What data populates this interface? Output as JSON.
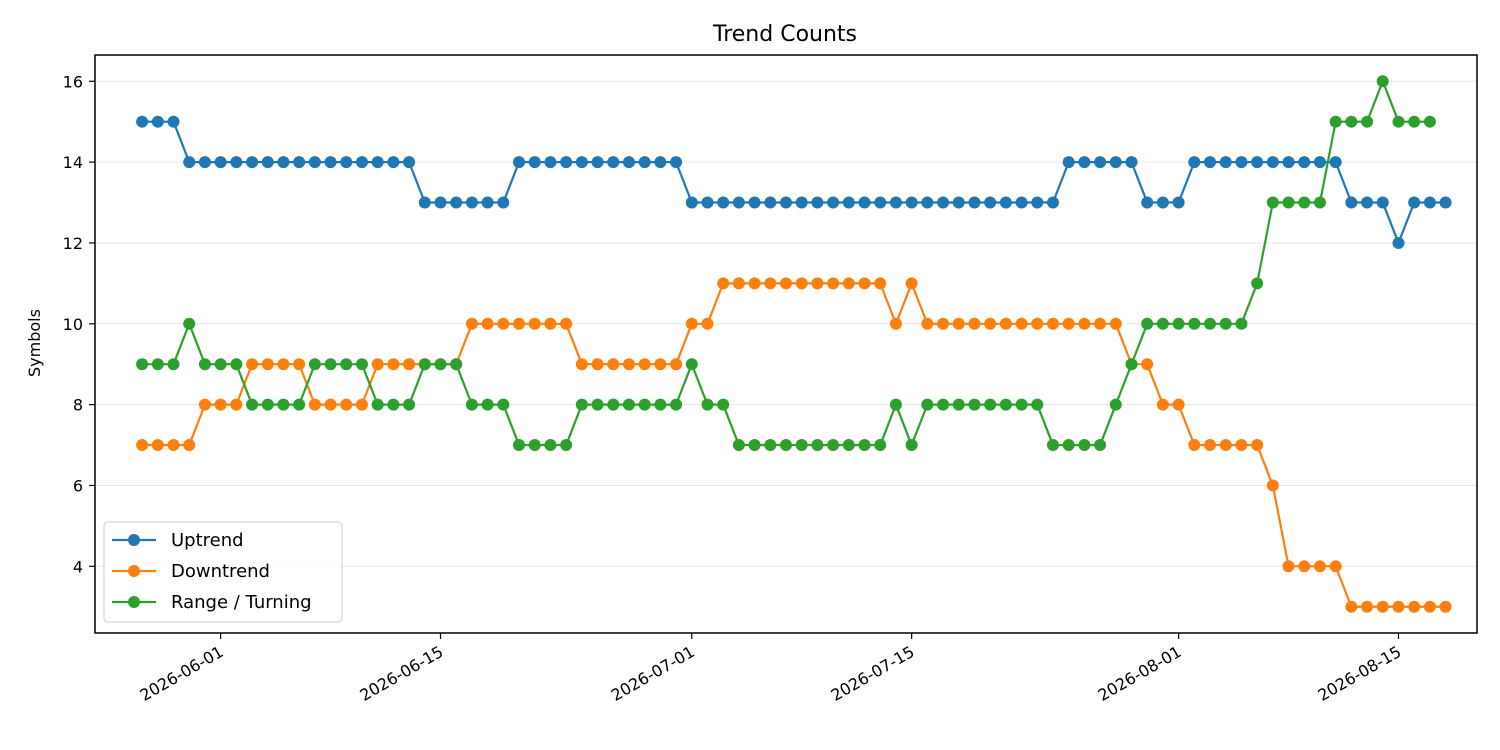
{
  "chart_data": {
    "type": "line",
    "title": "Trend Counts",
    "xlabel": "",
    "ylabel": "Symbols",
    "x_start": "2026-05-27",
    "x_end": "2026-08-17",
    "xlim": [
      "2026-05-24",
      "2026-08-20"
    ],
    "ylim": [
      2.35,
      16.65
    ],
    "y_ticks": [
      4,
      6,
      8,
      10,
      12,
      14,
      16
    ],
    "x_ticks": [
      "2026-06-01",
      "2026-06-15",
      "2026-07-01",
      "2026-07-15",
      "2026-08-01",
      "2026-08-15"
    ],
    "grid": "y",
    "legend_position": "lower-left",
    "series": [
      {
        "name": "Uptrend",
        "color": "#1f77b4",
        "values": [
          15,
          15,
          15,
          14,
          14,
          14,
          14,
          14,
          14,
          14,
          14,
          14,
          14,
          14,
          14,
          14,
          14,
          14,
          13,
          13,
          13,
          13,
          13,
          13,
          14,
          14,
          14,
          14,
          14,
          14,
          14,
          14,
          14,
          14,
          14,
          13,
          13,
          13,
          13,
          13,
          13,
          13,
          13,
          13,
          13,
          13,
          13,
          13,
          13,
          13,
          13,
          13,
          13,
          13,
          13,
          13,
          13,
          13,
          13,
          14,
          14,
          14,
          14,
          14,
          13,
          13,
          13,
          14,
          14,
          14,
          14,
          14,
          14,
          14,
          14,
          14,
          14,
          13,
          13,
          13,
          12,
          13,
          13,
          13
        ]
      },
      {
        "name": "Downtrend",
        "color": "#ff7f0e",
        "values": [
          7,
          7,
          7,
          7,
          8,
          8,
          8,
          9,
          9,
          9,
          9,
          8,
          8,
          8,
          8,
          9,
          9,
          9,
          9,
          9,
          9,
          10,
          10,
          10,
          10,
          10,
          10,
          10,
          9,
          9,
          9,
          9,
          9,
          9,
          9,
          10,
          10,
          11,
          11,
          11,
          11,
          11,
          11,
          11,
          11,
          11,
          11,
          11,
          10,
          11,
          10,
          10,
          10,
          10,
          10,
          10,
          10,
          10,
          10,
          10,
          10,
          10,
          10,
          9,
          9,
          8,
          8,
          7,
          7,
          7,
          7,
          7,
          6,
          4,
          4,
          4,
          4,
          3,
          3,
          3,
          3,
          3,
          3,
          3
        ]
      },
      {
        "name": "Range / Turning",
        "color": "#2ca02c",
        "values": [
          9,
          9,
          9,
          10,
          9,
          9,
          9,
          8,
          8,
          8,
          8,
          9,
          9,
          9,
          9,
          8,
          8,
          8,
          9,
          9,
          9,
          8,
          8,
          8,
          7,
          7,
          7,
          7,
          8,
          8,
          8,
          8,
          8,
          8,
          8,
          9,
          8,
          8,
          7,
          7,
          7,
          7,
          7,
          7,
          7,
          7,
          7,
          7,
          8,
          7,
          8,
          8,
          8,
          8,
          8,
          8,
          8,
          8,
          7,
          7,
          7,
          7,
          8,
          9,
          10,
          10,
          10,
          10,
          10,
          10,
          10,
          11,
          13,
          13,
          13,
          13,
          15,
          15,
          15,
          16,
          15,
          15,
          15
        ]
      }
    ]
  }
}
